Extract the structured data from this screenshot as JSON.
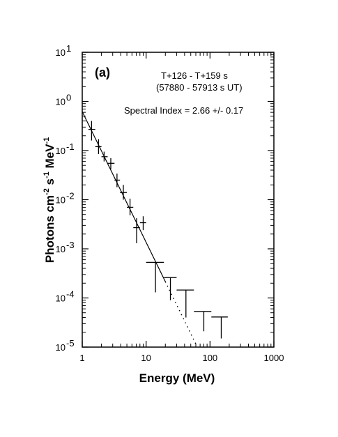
{
  "chart_data": {
    "type": "scatter",
    "panel_label": "(a)",
    "annotations": {
      "time_range": "T+126 - T+159 s",
      "ut_range": "(57880 - 57913 s UT)",
      "spectral_index": "Spectral Index = 2.66 +/- 0.17"
    },
    "xlabel": "Energy (MeV)",
    "ylabel": {
      "base": "Photons cm",
      "exp1": "-2",
      "mid1": " s",
      "exp2": "-1",
      "mid2": " MeV",
      "exp3": "-1"
    },
    "xscale": "log",
    "yscale": "log",
    "xlim": [
      1,
      1000
    ],
    "ylim": [
      1e-05,
      10
    ],
    "x_ticks": [
      {
        "value": 1,
        "label": "1"
      },
      {
        "value": 10,
        "label": "10"
      },
      {
        "value": 100,
        "label": "100"
      },
      {
        "value": 1000,
        "label": "1000"
      }
    ],
    "y_ticks": [
      {
        "value": 10,
        "base": "10",
        "exp": "1"
      },
      {
        "value": 1,
        "base": "10",
        "exp": "0"
      },
      {
        "value": 0.1,
        "base": "10",
        "exp": "-1"
      },
      {
        "value": 0.01,
        "base": "10",
        "exp": "-2"
      },
      {
        "value": 0.001,
        "base": "10",
        "exp": "-3"
      },
      {
        "value": 0.0001,
        "base": "10",
        "exp": "-4"
      },
      {
        "value": 1e-05,
        "base": "10",
        "exp": "-5"
      }
    ],
    "data_points": [
      {
        "x": 1.4,
        "y": 0.27,
        "xlo": 1.25,
        "xhi": 1.6,
        "ylo": 0.16,
        "yhi": 0.4
      },
      {
        "x": 1.8,
        "y": 0.12,
        "xlo": 1.6,
        "xhi": 2.0,
        "ylo": 0.085,
        "yhi": 0.17
      },
      {
        "x": 2.2,
        "y": 0.075,
        "xlo": 2.0,
        "xhi": 2.5,
        "ylo": 0.06,
        "yhi": 0.095
      },
      {
        "x": 2.8,
        "y": 0.055,
        "xlo": 2.5,
        "xhi": 3.2,
        "ylo": 0.042,
        "yhi": 0.07
      },
      {
        "x": 3.5,
        "y": 0.025,
        "xlo": 3.2,
        "xhi": 3.9,
        "ylo": 0.018,
        "yhi": 0.034
      },
      {
        "x": 4.4,
        "y": 0.014,
        "xlo": 3.9,
        "xhi": 5.0,
        "ylo": 0.01,
        "yhi": 0.02
      },
      {
        "x": 5.6,
        "y": 0.007,
        "xlo": 5.0,
        "xhi": 6.3,
        "ylo": 0.0048,
        "yhi": 0.0105
      },
      {
        "x": 7.1,
        "y": 0.0027,
        "xlo": 6.3,
        "xhi": 8.0,
        "ylo": 0.0013,
        "yhi": 0.0042
      },
      {
        "x": 9.0,
        "y": 0.0034,
        "xlo": 8.0,
        "xhi": 10.0,
        "ylo": 0.0024,
        "yhi": 0.0046
      }
    ],
    "upper_limits": [
      {
        "x": 14,
        "y": 0.00053,
        "xlo": 10,
        "xhi": 19,
        "ylo": 0.00013
      },
      {
        "x": 24,
        "y": 0.00026,
        "xlo": 19,
        "xhi": 30,
        "ylo": 9e-05
      },
      {
        "x": 42,
        "y": 0.000145,
        "xlo": 30,
        "xhi": 56,
        "ylo": 4e-05
      },
      {
        "x": 80,
        "y": 5.3e-05,
        "xlo": 56,
        "xhi": 105,
        "ylo": 2.1e-05
      },
      {
        "x": 150,
        "y": 4.1e-05,
        "xlo": 105,
        "xhi": 190,
        "ylo": 1.5e-05
      }
    ],
    "fit": {
      "index": 2.66,
      "amplitude": 0.62,
      "solid_range": [
        1,
        20
      ],
      "dotted_range": [
        20,
        62
      ]
    },
    "grid": false,
    "legend": "none"
  }
}
